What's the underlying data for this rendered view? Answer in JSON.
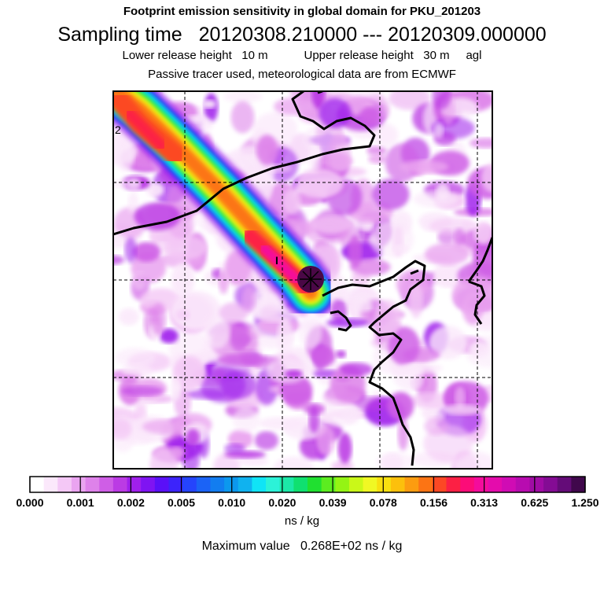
{
  "titles": {
    "line1": "Footprint emission sensitivity in global domain for PKU_201203",
    "line2_label": "Sampling time",
    "line2_start": "20120308.210000",
    "line2_sep": "---",
    "line2_end": "20120309.000000",
    "line3_lower_label": "Lower release height",
    "line3_lower_value": "10 m",
    "line3_upper_label": "Upper release height",
    "line3_upper_value": "30 m",
    "line3_agl": "agl",
    "line4": "Passive tracer used, meteorological data are from ECMWF"
  },
  "map_labels": {
    "left_edge": "2",
    "release_marker": "I"
  },
  "chart_data": {
    "type": "heatmap",
    "title": "Footprint emission sensitivity in global domain for PKU_201203",
    "colorbar": {
      "ticks": [
        "0.000",
        "0.001",
        "0.002",
        "0.005",
        "0.010",
        "0.020",
        "0.039",
        "0.078",
        "0.156",
        "0.313",
        "0.625",
        "1.250"
      ],
      "colors": [
        "#ffffff",
        "#fbe8fb",
        "#f4c8f6",
        "#eaa4f0",
        "#de82ea",
        "#cf5ee6",
        "#bb3be4",
        "#a020ec",
        "#7f14f2",
        "#5a10f8",
        "#3c24fb",
        "#2544fc",
        "#1b63f6",
        "#127df0",
        "#0c98ee",
        "#10b2ef",
        "#10e4f6",
        "#2cf2d8",
        "#1ce8a8",
        "#10e070",
        "#20e030",
        "#5cec20",
        "#94f414",
        "#caf818",
        "#f0f824",
        "#f8e010",
        "#fcc00c",
        "#fc9c10",
        "#fc7414",
        "#fc4824",
        "#fc2044",
        "#fc0c78",
        "#f40c9c",
        "#e40cac",
        "#d00cb4",
        "#b80cb0",
        "#a00ca4",
        "#840c94",
        "#640c78",
        "#40084c"
      ],
      "units": "ns / kg"
    },
    "max_value_label": "Maximum value",
    "max_value": "0.268E+02",
    "max_value_units": "ns / kg",
    "plume": {
      "description_dir": "northwest",
      "source_marker": "X",
      "peak_value": 26.8
    }
  },
  "theme": {
    "coast": "#000000",
    "grid": "#000000",
    "frame": "#000000"
  }
}
